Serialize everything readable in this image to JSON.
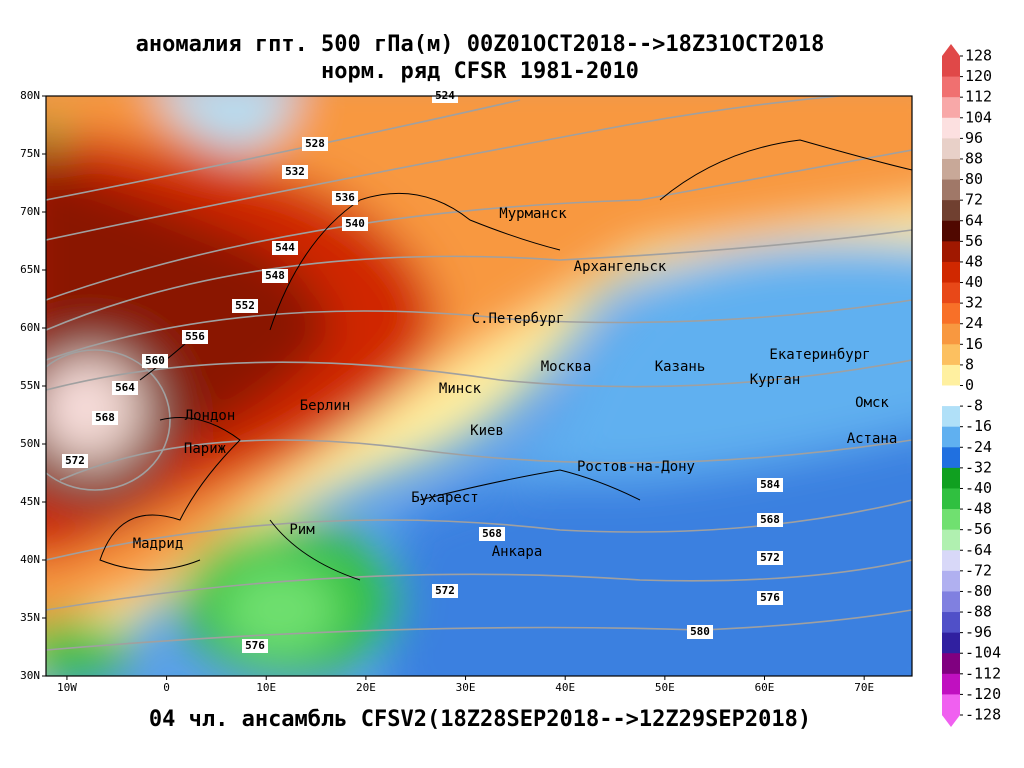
{
  "title": {
    "line1": "аномалия гпт. 500 гПа(м) 00Z01OCT2018-->18Z31OCT2018",
    "line2": "норм. ряд CFSR 1981-2010"
  },
  "footer": "04 чл. ансамбль CFSV2(18Z28SEP2018-->12Z29SEP2018)",
  "map": {
    "lat_ticks": [
      {
        "value": 80,
        "label": "80N"
      },
      {
        "value": 75,
        "label": "75N"
      },
      {
        "value": 70,
        "label": "70N"
      },
      {
        "value": 65,
        "label": "65N"
      },
      {
        "value": 60,
        "label": "60N"
      },
      {
        "value": 55,
        "label": "55N"
      },
      {
        "value": 50,
        "label": "50N"
      },
      {
        "value": 45,
        "label": "45N"
      },
      {
        "value": 40,
        "label": "40N"
      },
      {
        "value": 35,
        "label": "35N"
      },
      {
        "value": 30,
        "label": "30N"
      }
    ],
    "lon_ticks": [
      {
        "value": -10,
        "label": "10W"
      },
      0,
      {
        "value": 10,
        "label": "10E"
      },
      {
        "value": 20,
        "label": "20E"
      },
      {
        "value": 30,
        "label": "30E"
      },
      {
        "value": 40,
        "label": "40E"
      },
      {
        "value": 50,
        "label": "50E"
      },
      {
        "value": 60,
        "label": "60E"
      },
      {
        "value": 70,
        "label": "70E"
      }
    ],
    "cities": [
      "Мурманск",
      "Архангельск",
      "С.Петербург",
      "Москва",
      "Казань",
      "Екатеринбург",
      "Курган",
      "Омск",
      "Астана",
      "Минск",
      "Берлин",
      "Лондон",
      "Париж",
      "Киев",
      "Ростов-на-Дону",
      "Бухарест",
      "Рим",
      "Мадрид",
      "Анкара"
    ],
    "contour_labels": [
      524,
      528,
      532,
      536,
      540,
      544,
      548,
      552,
      556,
      560,
      564,
      568,
      572,
      568,
      572,
      576,
      580,
      584,
      568,
      572,
      576
    ]
  },
  "colorbar": {
    "levels": [
      128,
      120,
      112,
      104,
      96,
      88,
      80,
      72,
      64,
      56,
      48,
      40,
      32,
      24,
      16,
      8,
      0,
      -8,
      -16,
      -24,
      -32,
      -40,
      -48,
      -56,
      -64,
      -72,
      -80,
      -88,
      -96,
      -104,
      -112,
      -120,
      -128
    ],
    "colors": [
      "#e04848",
      "#f07070",
      "#f8a8a8",
      "#fce0e0",
      "#e8d0c8",
      "#c8a898",
      "#a07868",
      "#704030",
      "#500800",
      "#a01800",
      "#d02800",
      "#e84818",
      "#f87028",
      "#f89840",
      "#fcc060",
      "#fff0a0",
      "#ffffff",
      "#b0e0f8",
      "#60b0f0",
      "#2070e0",
      "#10a020",
      "#30c040",
      "#70e070",
      "#b0f0b0",
      "#d8d8f8",
      "#b0b0f0",
      "#8080e0",
      "#5050c8",
      "#3020a0",
      "#800080",
      "#c010c0",
      "#f060f0"
    ]
  }
}
